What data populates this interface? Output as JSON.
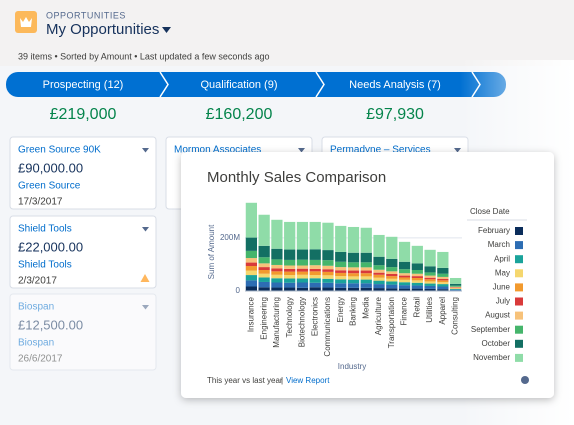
{
  "header": {
    "object_label": "OPPORTUNITIES",
    "list_name": "My Opportunities",
    "status": "39 items • Sorted by Amount • Last updated a few seconds ago"
  },
  "columns": [
    {
      "stage": "Prospecting (12)",
      "total": "£219,000",
      "cards": [
        {
          "name": "Green Source 90K",
          "amount": "£90,000.00",
          "account": "Green Source",
          "close_date": "17/3/2017"
        },
        {
          "name": "Shield Tools",
          "amount": "£22,000.00",
          "account": "Shield Tools",
          "close_date": "2/3/2017"
        },
        {
          "name": "Biospan",
          "amount": "£12,500.00",
          "account": "Biospan",
          "close_date": "26/6/2017"
        }
      ]
    },
    {
      "stage": "Qualification (9)",
      "total": "£160,200",
      "cards": [
        {
          "name": "Mormon Associates"
        }
      ]
    },
    {
      "stage": "Needs Analysis (7)",
      "total": "£97,930",
      "cards": [
        {
          "name": "Permadyne – Services"
        }
      ]
    }
  ],
  "chart_panel": {
    "footer_text": "This year vs last year",
    "footer_separator": "|",
    "footer_link": "View Report"
  },
  "chart_data": {
    "type": "bar",
    "stacked": true,
    "title": "Monthly Sales Comparison",
    "x_label": "Industry",
    "y_label": "Sum of Amount",
    "legend_title": "Close Date",
    "legend": "right",
    "categories": [
      "Insurance",
      "Engineering",
      "Manufacturing",
      "Technology",
      "Biotechnology",
      "Electronics",
      "Communications",
      "Energy",
      "Banking",
      "Media",
      "Agriculture",
      "Transportation",
      "Finance",
      "Retail",
      "Utilities",
      "Apparel",
      "Consulting"
    ],
    "series": [
      {
        "name": "February",
        "color": "#0b2d5b",
        "values": [
          17,
          14,
          13,
          13,
          12,
          14,
          13,
          12,
          12,
          12,
          11,
          10,
          9,
          9,
          8,
          7,
          2
        ]
      },
      {
        "name": "March",
        "color": "#2d6db3",
        "values": [
          23,
          20,
          19,
          18,
          20,
          17,
          18,
          17,
          17,
          17,
          15,
          14,
          13,
          12,
          11,
          10,
          3
        ]
      },
      {
        "name": "April",
        "color": "#1aa39b",
        "values": [
          20,
          17,
          16,
          16,
          15,
          17,
          15,
          15,
          14,
          14,
          13,
          12,
          11,
          10,
          9,
          9,
          3
        ]
      },
      {
        "name": "May",
        "color": "#f5d76e",
        "values": [
          17,
          14,
          13,
          13,
          14,
          12,
          13,
          12,
          12,
          12,
          11,
          10,
          9,
          9,
          8,
          7,
          2
        ]
      },
      {
        "name": "June",
        "color": "#f29a2e",
        "values": [
          17,
          14,
          13,
          13,
          12,
          14,
          13,
          12,
          12,
          12,
          11,
          10,
          9,
          9,
          8,
          7,
          2
        ]
      },
      {
        "name": "July",
        "color": "#d93a3a",
        "values": [
          13,
          11,
          11,
          10,
          11,
          9,
          10,
          10,
          10,
          10,
          8,
          8,
          7,
          7,
          6,
          6,
          2
        ]
      },
      {
        "name": "August",
        "color": "#f7c27a",
        "values": [
          17,
          14,
          13,
          13,
          12,
          14,
          13,
          12,
          12,
          12,
          11,
          10,
          9,
          9,
          8,
          7,
          2
        ]
      },
      {
        "name": "September",
        "color": "#45b56b",
        "values": [
          27,
          23,
          21,
          21,
          22,
          20,
          21,
          20,
          19,
          19,
          17,
          16,
          15,
          14,
          12,
          12,
          4
        ]
      },
      {
        "name": "October",
        "color": "#136f63",
        "values": [
          50,
          43,
          40,
          39,
          38,
          40,
          38,
          37,
          36,
          36,
          32,
          31,
          28,
          25,
          23,
          22,
          7
        ]
      },
      {
        "name": "November",
        "color": "#8fdca8",
        "values": [
          131,
          117,
          109,
          104,
          104,
          103,
          103,
          98,
          97,
          94,
          82,
          83,
          75,
          66,
          62,
          60,
          22
        ]
      }
    ],
    "ylim": [
      0,
      350
    ],
    "yticks": [
      0,
      {
        "value": 200,
        "label": "200M"
      }
    ]
  }
}
